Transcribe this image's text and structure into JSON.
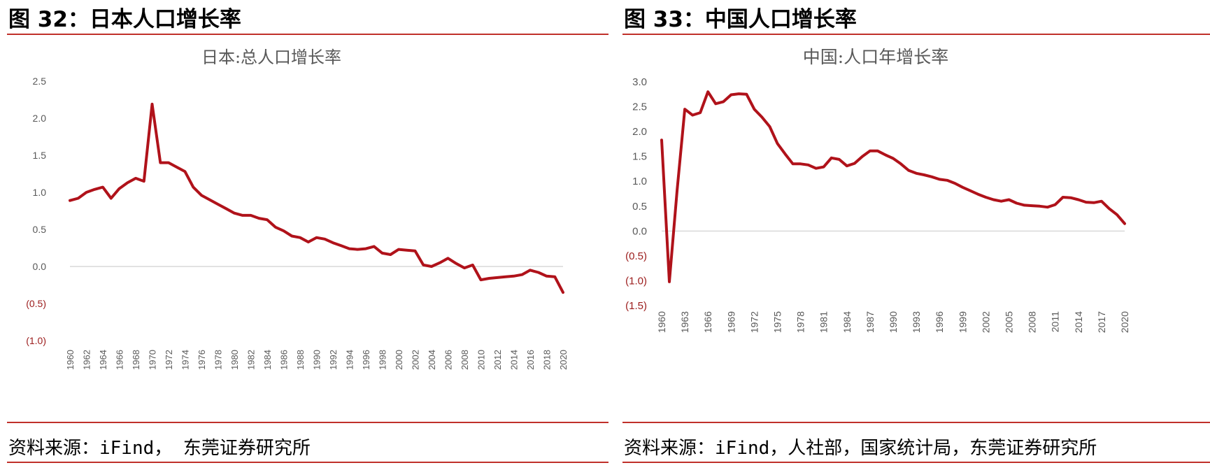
{
  "figures": [
    {
      "figure_title": "图 32：日本人口增长率",
      "source": "资料来源：iFind， 东莞证券研究所"
    },
    {
      "figure_title": "图 33：中国人口增长率",
      "source": "资料来源：iFind，人社部，国家统计局，东莞证券研究所"
    }
  ],
  "colors": {
    "line": "#b0121a",
    "rule": "#c0302a",
    "negative_tick": "#9b1b1b",
    "tick": "#595959"
  },
  "chart_data": [
    {
      "type": "line",
      "title": "日本:总人口增长率",
      "ylim": [
        -1.0,
        2.5
      ],
      "yticks": [
        2.5,
        2.0,
        1.5,
        1.0,
        0.5,
        0.0,
        -0.5,
        -1.0
      ],
      "ytick_labels": [
        "2.5",
        "2.0",
        "1.5",
        "1.0",
        "0.5",
        "0.0",
        "(0.5)",
        "(1.0)"
      ],
      "xtick_labels": [
        "1960",
        "1962",
        "1964",
        "1966",
        "1968",
        "1970",
        "1972",
        "1974",
        "1976",
        "1978",
        "1980",
        "1982",
        "1984",
        "1986",
        "1988",
        "1990",
        "1992",
        "1994",
        "1996",
        "1998",
        "2000",
        "2002",
        "2004",
        "2006",
        "2008",
        "2010",
        "2012",
        "2014",
        "2016",
        "2018",
        "2020"
      ],
      "grid": false,
      "x": [
        1960,
        1961,
        1962,
        1963,
        1964,
        1965,
        1966,
        1967,
        1968,
        1969,
        1970,
        1971,
        1972,
        1973,
        1974,
        1975,
        1976,
        1977,
        1978,
        1979,
        1980,
        1981,
        1982,
        1983,
        1984,
        1985,
        1986,
        1987,
        1988,
        1989,
        1990,
        1991,
        1992,
        1993,
        1994,
        1995,
        1996,
        1997,
        1998,
        1999,
        2000,
        2001,
        2002,
        2003,
        2004,
        2005,
        2006,
        2007,
        2008,
        2009,
        2010,
        2011,
        2012,
        2013,
        2014,
        2015,
        2016,
        2017,
        2018,
        2019,
        2020
      ],
      "values": [
        0.89,
        0.92,
        1.0,
        1.04,
        1.07,
        0.92,
        1.05,
        1.13,
        1.19,
        1.15,
        2.19,
        1.4,
        1.4,
        1.34,
        1.28,
        1.07,
        0.96,
        0.9,
        0.84,
        0.78,
        0.72,
        0.69,
        0.69,
        0.65,
        0.63,
        0.53,
        0.48,
        0.41,
        0.39,
        0.33,
        0.39,
        0.37,
        0.32,
        0.28,
        0.24,
        0.23,
        0.24,
        0.27,
        0.18,
        0.16,
        0.23,
        0.22,
        0.21,
        0.02,
        0.0,
        0.05,
        0.11,
        0.04,
        -0.02,
        0.02,
        -0.18,
        -0.16,
        -0.15,
        -0.14,
        -0.13,
        -0.11,
        -0.05,
        -0.08,
        -0.13,
        -0.14,
        -0.35
      ]
    },
    {
      "type": "line",
      "title": "中国:人口年增长率",
      "ylim": [
        -1.5,
        3.0
      ],
      "yticks": [
        3.0,
        2.5,
        2.0,
        1.5,
        1.0,
        0.5,
        0.0,
        -0.5,
        -1.0,
        -1.5
      ],
      "ytick_labels": [
        "3.0",
        "2.5",
        "2.0",
        "1.5",
        "1.0",
        "0.5",
        "0.0",
        "(0.5)",
        "(1.0)",
        "(1.5)"
      ],
      "xtick_labels": [
        "1960",
        "1963",
        "1966",
        "1969",
        "1972",
        "1975",
        "1978",
        "1981",
        "1984",
        "1987",
        "1990",
        "1993",
        "1996",
        "1999",
        "2002",
        "2005",
        "2008",
        "2011",
        "2014",
        "2017",
        "2020"
      ],
      "grid": false,
      "x": [
        1960,
        1961,
        1962,
        1963,
        1964,
        1965,
        1966,
        1967,
        1968,
        1969,
        1970,
        1971,
        1972,
        1973,
        1974,
        1975,
        1976,
        1977,
        1978,
        1979,
        1980,
        1981,
        1982,
        1983,
        1984,
        1985,
        1986,
        1987,
        1988,
        1989,
        1990,
        1991,
        1992,
        1993,
        1994,
        1995,
        1996,
        1997,
        1998,
        1999,
        2000,
        2001,
        2002,
        2003,
        2004,
        2005,
        2006,
        2007,
        2008,
        2009,
        2010,
        2011,
        2012,
        2013,
        2014,
        2015,
        2016,
        2017,
        2018,
        2019,
        2020
      ],
      "values": [
        1.83,
        -1.02,
        0.82,
        2.45,
        2.33,
        2.38,
        2.8,
        2.56,
        2.6,
        2.74,
        2.76,
        2.75,
        2.45,
        2.29,
        2.1,
        1.76,
        1.55,
        1.35,
        1.35,
        1.33,
        1.26,
        1.29,
        1.47,
        1.44,
        1.31,
        1.36,
        1.5,
        1.61,
        1.61,
        1.53,
        1.46,
        1.35,
        1.22,
        1.16,
        1.13,
        1.09,
        1.04,
        1.02,
        0.96,
        0.88,
        0.81,
        0.74,
        0.68,
        0.63,
        0.6,
        0.63,
        0.56,
        0.52,
        0.51,
        0.5,
        0.48,
        0.53,
        0.68,
        0.67,
        0.63,
        0.58,
        0.57,
        0.6,
        0.45,
        0.33,
        0.15
      ]
    }
  ]
}
